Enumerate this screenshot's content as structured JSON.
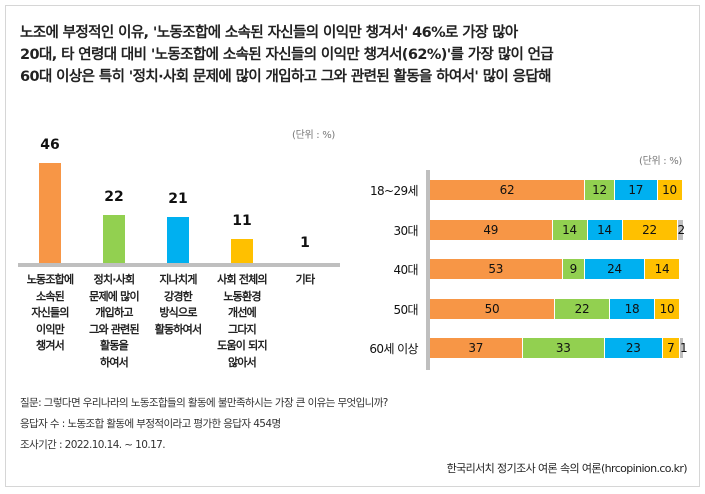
{
  "title_lines": [
    "노조에 부정적인 이유, '노동조합에 소속된 자신들의 이익만 챙겨서' 46%로 가장 많아",
    "20대, 타 연령대 대비 '노동조합에 소속된 자신들의 이익만 챙겨서(62%)'를 가장 많이 언급",
    "60대 이상은 특히 '정치·사회 문제에 많이 개입하고 그와 관련된 활동을 하여서' 많이 응답해"
  ],
  "colors": {
    "orange": "#F79646",
    "green": "#92D050",
    "blue": "#00B0F0",
    "yellow": "#FFC000",
    "gray": "#BFBFBF",
    "axis": "#BFBFBF"
  },
  "chart_data": [
    {
      "type": "bar",
      "unit_label": "(단위 : %)",
      "categories": [
        "노동조합에\n소속된\n자신들의\n이익만\n챙겨서",
        "정치·사회\n문제에 많이\n개입하고\n그와 관련된\n활동을\n하여서",
        "지나치게\n강경한\n방식으로\n활동하여서",
        "사회 전체의\n노동환경\n개선에\n그다지\n도움이 되지\n않아서",
        "기타"
      ],
      "values": [
        46,
        22,
        21,
        11,
        1
      ],
      "bar_colors": [
        "#F79646",
        "#92D050",
        "#00B0F0",
        "#FFC000",
        "#BFBFBF"
      ],
      "ylim": [
        0,
        50
      ]
    },
    {
      "type": "stacked-bar-horizontal",
      "unit_label": "(단위 : %)",
      "categories": [
        "18~29세",
        "30대",
        "40대",
        "50대",
        "60세 이상"
      ],
      "series": [
        {
          "name": "노동조합에 소속된 자신들의 이익만 챙겨서",
          "color": "#F79646",
          "values": [
            62,
            49,
            53,
            50,
            37
          ]
        },
        {
          "name": "정치·사회 문제에 많이 개입하고 그와 관련된 활동을 하여서",
          "color": "#92D050",
          "values": [
            12,
            14,
            9,
            22,
            33
          ]
        },
        {
          "name": "지나치게 강경한 방식으로 활동하여서",
          "color": "#00B0F0",
          "values": [
            17,
            14,
            24,
            18,
            23
          ]
        },
        {
          "name": "사회 전체의 노동환경 개선에 그다지 도움이 되지 않아서",
          "color": "#FFC000",
          "values": [
            10,
            22,
            14,
            10,
            7
          ]
        },
        {
          "name": "기타",
          "color": "#BFBFBF",
          "values": [
            0,
            2,
            0,
            0,
            1
          ]
        }
      ],
      "xlim": [
        0,
        101
      ]
    }
  ],
  "footer": {
    "question": "질문: 그렇다면 우리나라의 노동조합들의 활동에 불만족하시는 가장 큰 이유는 무엇입니까?",
    "respondents": "응답자 수 : 노동조합 활동에 부정적이라고 평가한 응답자 454명",
    "period": "조사기간 : 2022.10.14. ~  10.17.",
    "source": "한국리서치 정기조사 여론 속의 여론(hrcopinion.co.kr)"
  }
}
